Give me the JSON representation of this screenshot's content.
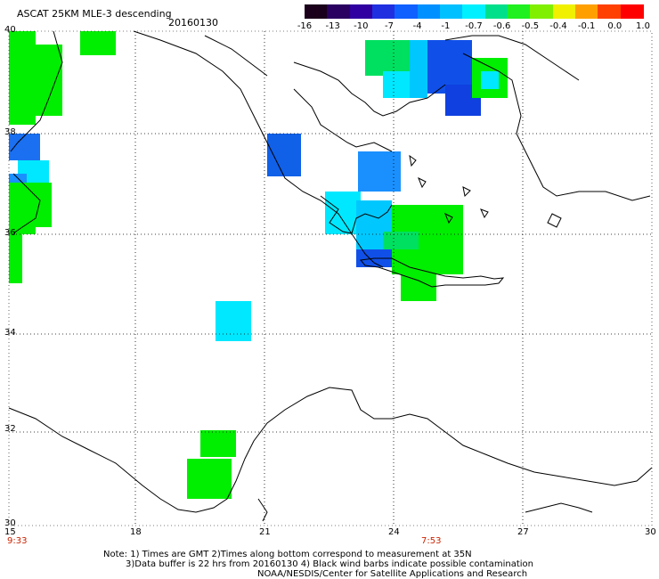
{
  "title": "ASCAT 25KM MLE-3 descending",
  "date": "20160130",
  "colorbar": {
    "labels": [
      "-16",
      "-13",
      "-10",
      "-7",
      "-4",
      "-1",
      "-0.7",
      "-0.6",
      "-0.5",
      "-0.4",
      "-0.1",
      "0.0",
      "1.0"
    ],
    "colors": [
      "#1a001a",
      "#2a0060",
      "#3000a0",
      "#2030e0",
      "#1060ff",
      "#0090ff",
      "#00c0ff",
      "#00f0ff",
      "#00e08a",
      "#20f020",
      "#80f000",
      "#f0f000",
      "#ffa000",
      "#ff4000",
      "#ff0000"
    ]
  },
  "lat_labels": [
    "40",
    "38",
    "36",
    "34",
    "32",
    "30"
  ],
  "lon_labels": [
    "15",
    "18",
    "21",
    "24",
    "27",
    "30"
  ],
  "time_left": "9:33",
  "time_mid": "7:53",
  "notes": [
    "Note: 1) Times are GMT 2)Times along bottom correspond to measurement at 35N",
    "3)Data buffer is 22 hrs from 20160130 4) Black wind barbs indicate possible contamination",
    "NOAA/NESDIS/Center for Satellite Applications and Research"
  ]
}
